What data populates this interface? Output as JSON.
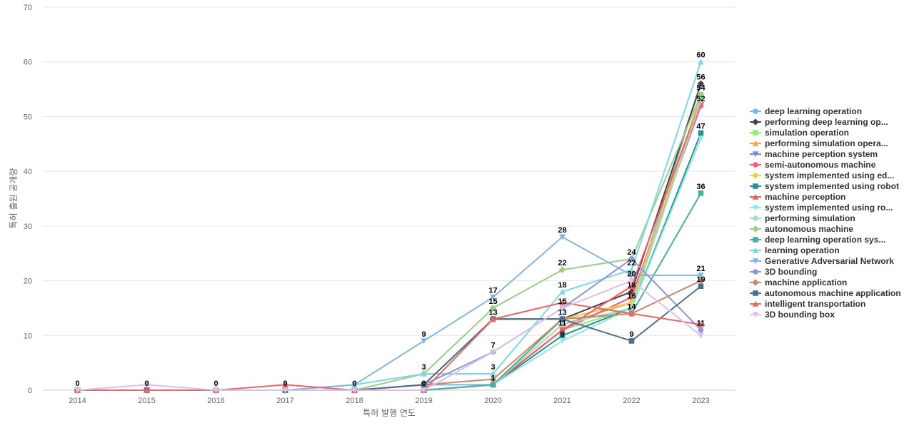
{
  "chart_data": {
    "type": "line",
    "title": "",
    "xlabel": "특허 발행 연도",
    "ylabel": "특허 출원 공개량",
    "x": [
      "2014",
      "2015",
      "2016",
      "2017",
      "2018",
      "2019",
      "2020",
      "2021",
      "2022",
      "2023"
    ],
    "ylim": [
      0,
      70
    ],
    "yticks": [
      0,
      10,
      20,
      30,
      40,
      50,
      60,
      70
    ],
    "grid": true,
    "legend_position": "right",
    "series": [
      {
        "name": "deep learning operation",
        "color": "#7cb5ec",
        "marker": "circle",
        "values": [
          0,
          0,
          0,
          0,
          0,
          1,
          1,
          13,
          16,
          56
        ]
      },
      {
        "name": "performing deep learning op...",
        "color": "#434348",
        "marker": "diamond",
        "values": [
          0,
          0,
          0,
          0,
          0,
          1,
          13,
          13,
          18,
          56
        ]
      },
      {
        "name": "simulation operation",
        "color": "#90ed7d",
        "marker": "square",
        "values": [
          0,
          0,
          0,
          0,
          0,
          0,
          1,
          11,
          15,
          54
        ]
      },
      {
        "name": "performing simulation opera...",
        "color": "#f7a35c",
        "marker": "triangle",
        "values": [
          0,
          0,
          0,
          0,
          0,
          0,
          1,
          12,
          16,
          53
        ]
      },
      {
        "name": "machine perception system",
        "color": "#8085e9",
        "marker": "triangle-down",
        "values": [
          0,
          0,
          0,
          0,
          0,
          0,
          1,
          11,
          17,
          52
        ]
      },
      {
        "name": "semi-autonomous machine",
        "color": "#f15c80",
        "marker": "circle",
        "values": [
          0,
          0,
          0,
          0,
          0,
          0,
          1,
          11,
          17,
          52
        ]
      },
      {
        "name": "system implemented using ed...",
        "color": "#e4d354",
        "marker": "diamond",
        "values": [
          0,
          0,
          0,
          0,
          0,
          0,
          1,
          13,
          16,
          54
        ]
      },
      {
        "name": "system implemented using robot",
        "color": "#2b908f",
        "marker": "square",
        "values": [
          0,
          0,
          0,
          0,
          0,
          0,
          1,
          10,
          15,
          47
        ]
      },
      {
        "name": "machine perception",
        "color": "#f45b5b",
        "marker": "triangle",
        "values": [
          0,
          0,
          0,
          0,
          0,
          0,
          1,
          11,
          19,
          53
        ]
      },
      {
        "name": "system implemented using ro...",
        "color": "#91e8e1",
        "marker": "triangle-down",
        "values": [
          0,
          0,
          0,
          0,
          0,
          0,
          1,
          9,
          15,
          46
        ]
      },
      {
        "name": "performing simulation",
        "color": "#a8dcc0",
        "marker": "circle",
        "values": [
          0,
          0,
          0,
          0,
          0,
          0,
          1,
          12,
          15,
          53
        ]
      },
      {
        "name": "autonomous machine",
        "color": "#9ccc8c",
        "marker": "diamond",
        "values": [
          0,
          0,
          0,
          0,
          0,
          3,
          15,
          22,
          24,
          54
        ]
      },
      {
        "name": "deep learning operation sys...",
        "color": "#4cae9c",
        "marker": "square",
        "values": [
          0,
          0,
          0,
          0,
          0,
          0,
          1,
          13,
          14,
          36
        ]
      },
      {
        "name": "learning operation",
        "color": "#7fd6e4",
        "marker": "triangle",
        "values": [
          0,
          0,
          0,
          0,
          1,
          3,
          3,
          18,
          22,
          60
        ]
      },
      {
        "name": "Generative Adversarial Network",
        "color": "#86b6e0",
        "marker": "triangle-down",
        "values": [
          0,
          0,
          0,
          0,
          1,
          9,
          17,
          28,
          21,
          21
        ]
      },
      {
        "name": "3D bounding",
        "color": "#8f94d4",
        "marker": "circle",
        "values": [
          0,
          0,
          0,
          0,
          0,
          1,
          7,
          15,
          24,
          11
        ]
      },
      {
        "name": "machine application",
        "color": "#c48a6a",
        "marker": "diamond",
        "values": [
          0,
          0,
          0,
          0,
          0,
          1,
          2,
          13,
          14,
          20
        ]
      },
      {
        "name": "autonomous machine application",
        "color": "#4d6f87",
        "marker": "square",
        "values": [
          0,
          0,
          0,
          0,
          0,
          1,
          13,
          13,
          9,
          19
        ]
      },
      {
        "name": "intelligent transportation",
        "color": "#e8686a",
        "marker": "triangle",
        "values": [
          0,
          0,
          0,
          1,
          0,
          0,
          13,
          16,
          14,
          12
        ]
      },
      {
        "name": "3D bounding box",
        "color": "#dcc0e8",
        "marker": "triangle-down",
        "values": [
          0,
          1,
          0,
          0,
          0,
          0,
          7,
          15,
          20,
          10
        ]
      }
    ],
    "data_labels": [
      {
        "x": "2014",
        "value": "0"
      },
      {
        "x": "2015",
        "value": "0"
      },
      {
        "x": "2016",
        "value": "0"
      },
      {
        "x": "2017",
        "value": "0"
      },
      {
        "x": "2018",
        "value": "0"
      },
      {
        "x": "2019",
        "value": "9",
        "at": 9
      },
      {
        "x": "2019",
        "value": "3",
        "at": 3
      },
      {
        "x": "2019",
        "value": "0",
        "at": 0
      },
      {
        "x": "2020",
        "value": "17",
        "at": 17
      },
      {
        "x": "2020",
        "value": "15",
        "at": 15
      },
      {
        "x": "2020",
        "value": "13",
        "at": 13
      },
      {
        "x": "2020",
        "value": "7",
        "at": 7
      },
      {
        "x": "2020",
        "value": "3",
        "at": 3
      },
      {
        "x": "2020",
        "value": "1",
        "at": 1
      },
      {
        "x": "2021",
        "value": "28",
        "at": 28
      },
      {
        "x": "2021",
        "value": "22",
        "at": 22
      },
      {
        "x": "2021",
        "value": "18",
        "at": 18
      },
      {
        "x": "2021",
        "value": "15",
        "at": 15
      },
      {
        "x": "2021",
        "value": "13",
        "at": 13
      },
      {
        "x": "2021",
        "value": "11",
        "at": 11
      },
      {
        "x": "2021",
        "value": "9",
        "at": 9
      },
      {
        "x": "2022",
        "value": "24",
        "at": 24
      },
      {
        "x": "2022",
        "value": "22",
        "at": 22
      },
      {
        "x": "2022",
        "value": "20",
        "at": 20
      },
      {
        "x": "2022",
        "value": "18",
        "at": 18
      },
      {
        "x": "2022",
        "value": "16",
        "at": 16
      },
      {
        "x": "2022",
        "value": "14",
        "at": 14
      },
      {
        "x": "2022",
        "value": "9",
        "at": 9
      },
      {
        "x": "2023",
        "value": "60",
        "at": 60
      },
      {
        "x": "2023",
        "value": "56",
        "at": 56
      },
      {
        "x": "2023",
        "value": "54",
        "at": 54
      },
      {
        "x": "2023",
        "value": "52",
        "at": 52
      },
      {
        "x": "2023",
        "value": "47",
        "at": 47
      },
      {
        "x": "2023",
        "value": "36",
        "at": 36
      },
      {
        "x": "2023",
        "value": "21",
        "at": 21
      },
      {
        "x": "2023",
        "value": "19",
        "at": 19
      },
      {
        "x": "2023",
        "value": "11",
        "at": 11
      }
    ]
  }
}
